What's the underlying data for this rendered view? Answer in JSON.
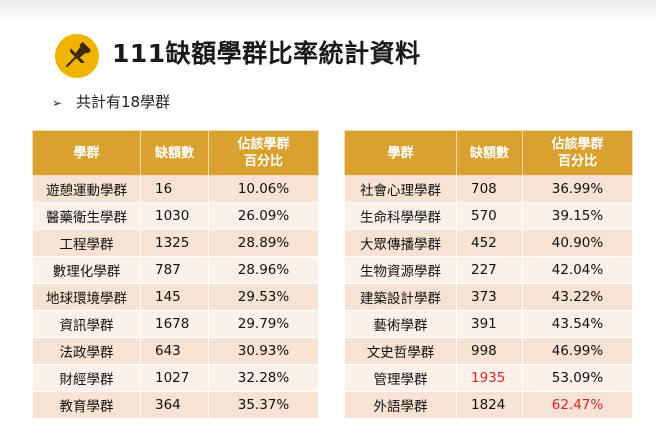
{
  "title": "111缺額學群比率統計資料",
  "subtitle": {
    "bullet": "➢",
    "text": "共計有18學群"
  },
  "icon": "pushpin-icon",
  "colors": {
    "header": "#d9a12f",
    "highlight": "#d9252a",
    "icon_bg": "#f0b400"
  },
  "headers": {
    "group": "學群",
    "vacancies": "缺額數",
    "ratio_line1": "佔該學群",
    "ratio_line2": "百分比"
  },
  "left_table": [
    {
      "group": "遊憩運動學群",
      "vacancies": "16",
      "ratio": "10.06%"
    },
    {
      "group": "醫藥衛生學群",
      "vacancies": "1030",
      "ratio": "26.09%"
    },
    {
      "group": "工程學群",
      "vacancies": "1325",
      "ratio": "28.89%"
    },
    {
      "group": "數理化學群",
      "vacancies": "787",
      "ratio": "28.96%"
    },
    {
      "group": "地球環境學群",
      "vacancies": "145",
      "ratio": "29.53%"
    },
    {
      "group": "資訊學群",
      "vacancies": "1678",
      "ratio": "29.79%"
    },
    {
      "group": "法政學群",
      "vacancies": "643",
      "ratio": "30.93%"
    },
    {
      "group": "財經學群",
      "vacancies": "1027",
      "ratio": "32.28%"
    },
    {
      "group": "教育學群",
      "vacancies": "364",
      "ratio": "35.37%"
    }
  ],
  "right_table": [
    {
      "group": "社會心理學群",
      "vacancies": "708",
      "ratio": "36.99%"
    },
    {
      "group": "生命科學學群",
      "vacancies": "570",
      "ratio": "39.15%"
    },
    {
      "group": "大眾傳播學群",
      "vacancies": "452",
      "ratio": "40.90%"
    },
    {
      "group": "生物資源學群",
      "vacancies": "227",
      "ratio": "42.04%"
    },
    {
      "group": "建築設計學群",
      "vacancies": "373",
      "ratio": "43.22%"
    },
    {
      "group": "藝術學群",
      "vacancies": "391",
      "ratio": "43.54%"
    },
    {
      "group": "文史哲學群",
      "vacancies": "998",
      "ratio": "46.99%"
    },
    {
      "group": "管理學群",
      "vacancies": "1935",
      "ratio": "53.09%",
      "vacancies_highlight": true
    },
    {
      "group": "外語學群",
      "vacancies": "1824",
      "ratio": "62.47%",
      "ratio_highlight": true
    }
  ]
}
